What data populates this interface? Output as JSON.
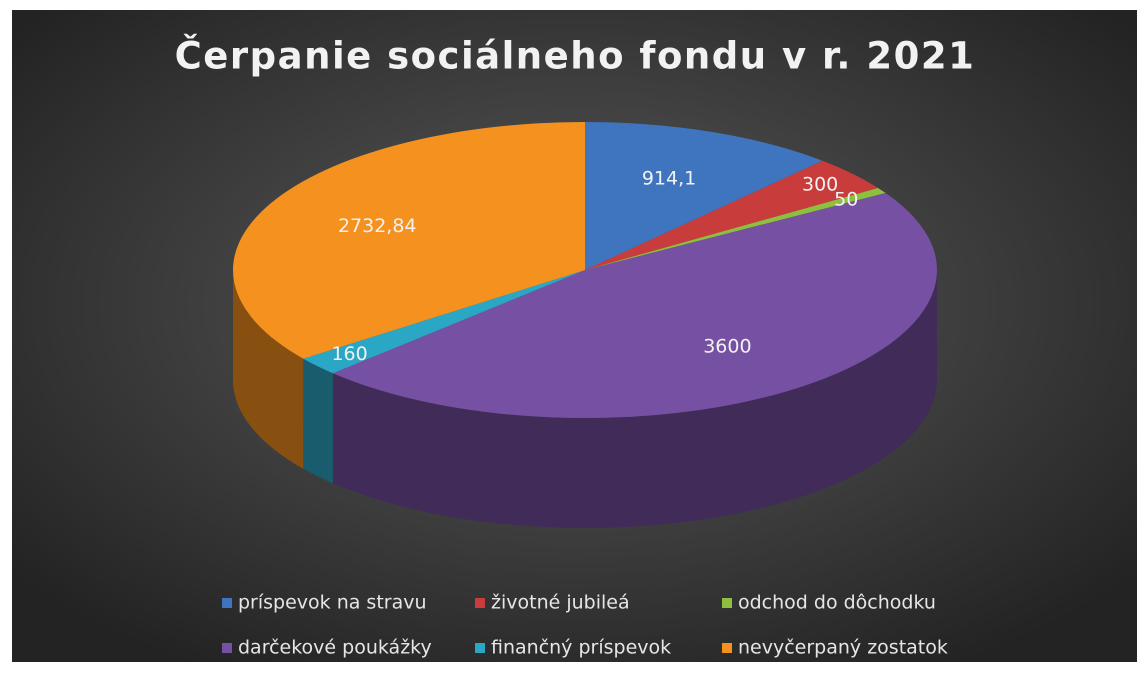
{
  "chart_data": {
    "type": "pie",
    "title": "Čerpanie sociálneho fondu v r. 2021",
    "categories": [
      "príspevok na stravu",
      "životné jubileá",
      "odchod do dôchodku",
      "darčekové poukážky",
      "finančný príspevok",
      "nevyčerpaný zostatok"
    ],
    "values": [
      914.1,
      300,
      50,
      3600,
      160,
      2732.84
    ],
    "value_labels": [
      "914,1",
      "300",
      "50",
      "3600",
      "160",
      "2732,84"
    ],
    "colors": [
      "#3f74be",
      "#c93c3c",
      "#8fbf3e",
      "#7650a2",
      "#2ba7c6",
      "#f5921f"
    ],
    "legend": "bottom"
  }
}
